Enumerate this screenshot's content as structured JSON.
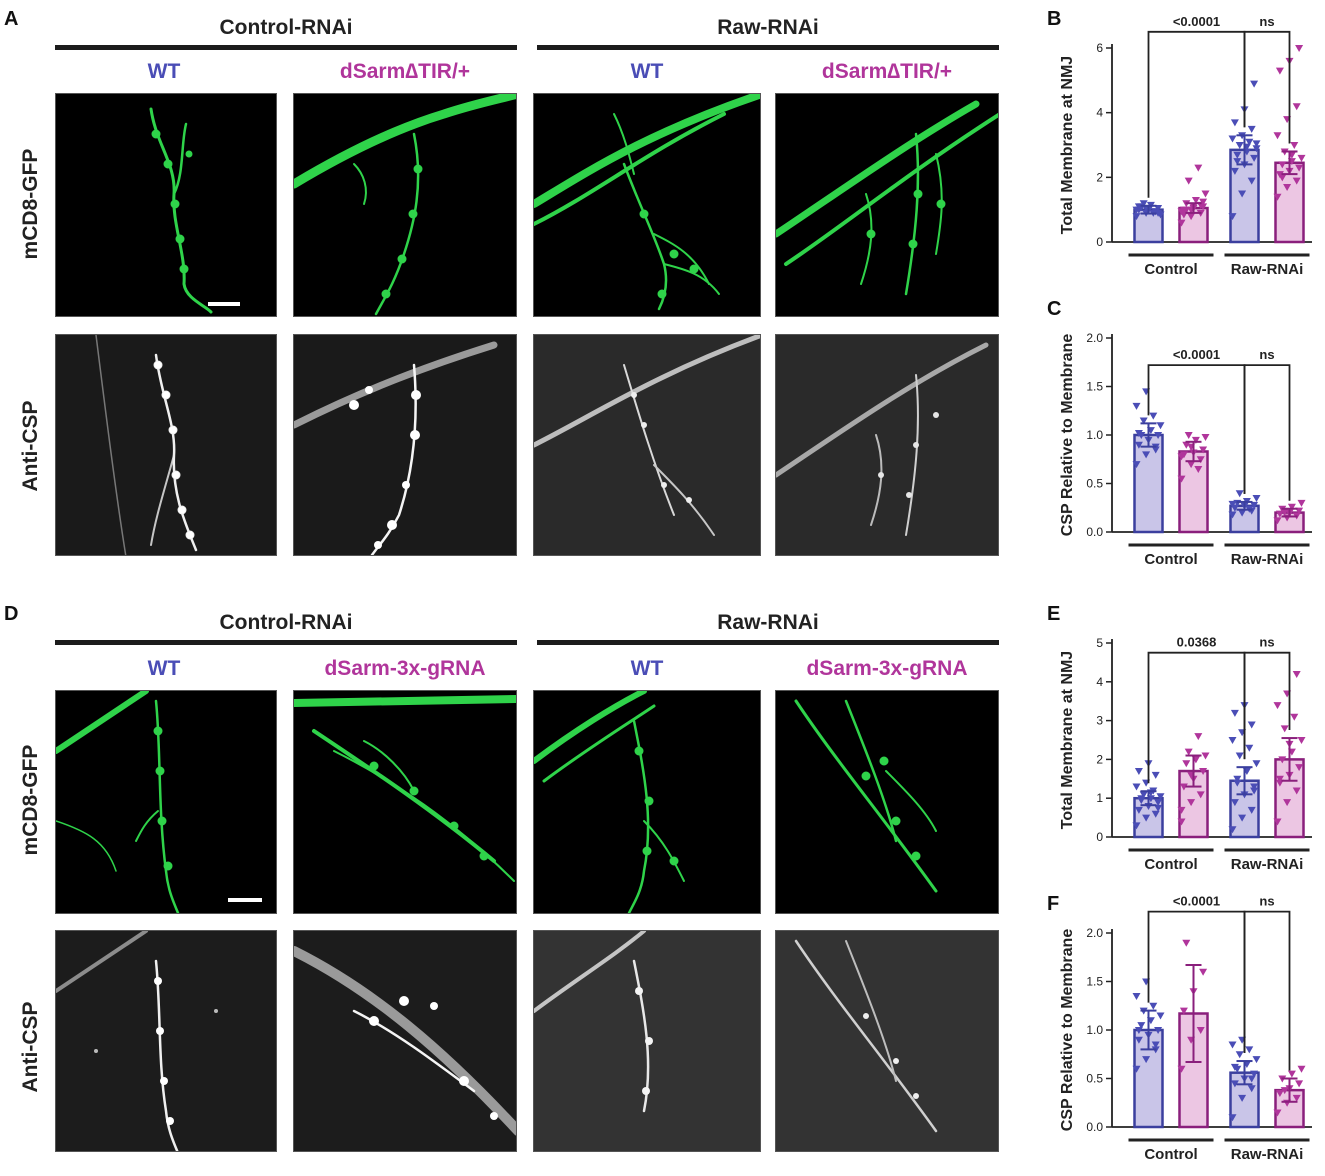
{
  "colors": {
    "wt": "#4a4db6",
    "sarm": "#b0359b",
    "wt_fill": "#c9c5e8",
    "sarm_fill": "#ecc6e3",
    "gfp": "#2fd34a",
    "wt_line": "#3b3f9e",
    "sarm_line": "#8a1f7c"
  },
  "letters": {
    "A": "A",
    "B": "B",
    "C": "C",
    "D": "D",
    "E": "E",
    "F": "F"
  },
  "top": {
    "group_left": "Control-RNAi",
    "group_right": "Raw-RNAi",
    "geno": [
      "WT",
      "dSarm∆TIR/+",
      "WT",
      "dSarm∆TIR/+"
    ],
    "row1": "mCD8-GFP",
    "row2": "Anti-CSP"
  },
  "bottom": {
    "group_left": "Control-RNAi",
    "group_right": "Raw-RNAi",
    "geno": [
      "WT",
      "dSarm-3x-gRNA",
      "WT",
      "dSarm-3x-gRNA"
    ],
    "row1": "mCD8-GFP",
    "row2": "Anti-CSP"
  },
  "chart_data": [
    {
      "panel": "B",
      "type": "bar",
      "ylabel": "Total Membrane at NMJ",
      "ylim": [
        0,
        6
      ],
      "yticks": [
        "0",
        "2",
        "4",
        "6"
      ],
      "groups": [
        "Control",
        "Raw-RNAi"
      ],
      "means": [
        1.0,
        1.05,
        2.85,
        2.45
      ],
      "errors": [
        0.12,
        0.15,
        0.45,
        0.35
      ],
      "sig": [
        {
          "label": "<0.0001",
          "from": 0,
          "to": 2,
          "y": 6.5
        },
        {
          "label": "ns",
          "from": 2,
          "to": 3,
          "y": 6.5
        }
      ],
      "points": [
        [
          0.8,
          0.9,
          0.95,
          1.0,
          1.0,
          1.05,
          1.1,
          1.15,
          0.85,
          1.2,
          0.9,
          1.0,
          1.05,
          0.95,
          1.1,
          1.0,
          0.9,
          1.08
        ],
        [
          0.6,
          0.8,
          0.9,
          1.0,
          1.05,
          1.1,
          1.2,
          1.3,
          1.5,
          1.9,
          2.3,
          0.95,
          1.0,
          1.15,
          0.85,
          1.1,
          1.25,
          1.0
        ],
        [
          0.8,
          1.5,
          1.9,
          2.2,
          2.4,
          2.6,
          2.7,
          2.8,
          2.9,
          3.0,
          3.1,
          3.2,
          3.3,
          3.5,
          3.7,
          4.1,
          4.9,
          2.5,
          2.95,
          3.05
        ],
        [
          1.4,
          1.7,
          1.9,
          2.1,
          2.2,
          2.3,
          2.4,
          2.5,
          2.6,
          2.8,
          3.0,
          3.3,
          3.8,
          4.2,
          5.3,
          5.6,
          6.0,
          2.0,
          2.7
        ]
      ]
    },
    {
      "panel": "C",
      "type": "bar",
      "ylabel": "CSP Relative to Membrane",
      "ylim": [
        0,
        2
      ],
      "yticks": [
        "0.0",
        "0.5",
        "1.0",
        "1.5",
        "2.0"
      ],
      "groups": [
        "Control",
        "Raw-RNAi"
      ],
      "means": [
        1.0,
        0.83,
        0.27,
        0.2
      ],
      "errors": [
        0.12,
        0.1,
        0.04,
        0.04
      ],
      "sig": [
        {
          "label": "<0.0001",
          "from": 0,
          "to": 2,
          "y": 1.72
        },
        {
          "label": "ns",
          "from": 2,
          "to": 3,
          "y": 1.72
        }
      ],
      "points": [
        [
          0.7,
          0.8,
          0.85,
          0.9,
          0.95,
          1.0,
          1.0,
          1.05,
          1.1,
          1.15,
          1.2,
          1.3,
          1.45,
          0.88,
          1.02
        ],
        [
          0.55,
          0.7,
          0.75,
          0.8,
          0.82,
          0.85,
          0.9,
          0.95,
          0.98,
          1.0,
          0.65,
          0.78,
          0.88
        ],
        [
          0.18,
          0.2,
          0.22,
          0.25,
          0.27,
          0.28,
          0.3,
          0.32,
          0.35,
          0.4,
          0.24,
          0.29
        ],
        [
          0.12,
          0.15,
          0.17,
          0.19,
          0.2,
          0.22,
          0.24,
          0.26,
          0.3,
          0.21
        ]
      ]
    },
    {
      "panel": "E",
      "type": "bar",
      "ylabel": "Total Membrane at NMJ",
      "ylim": [
        0,
        5
      ],
      "yticks": [
        "0",
        "1",
        "2",
        "3",
        "4",
        "5"
      ],
      "groups": [
        "Control",
        "Raw-RNAi"
      ],
      "means": [
        1.0,
        1.7,
        1.45,
        2.0
      ],
      "errors": [
        0.18,
        0.4,
        0.35,
        0.55
      ],
      "sig": [
        {
          "label": "0.0368",
          "from": 0,
          "to": 2,
          "y": 4.75
        },
        {
          "label": "ns",
          "from": 2,
          "to": 3,
          "y": 4.75
        }
      ],
      "points": [
        [
          0.3,
          0.5,
          0.6,
          0.7,
          0.8,
          0.9,
          0.95,
          1.0,
          1.05,
          1.1,
          1.2,
          1.3,
          1.4,
          1.6,
          1.7,
          1.9,
          0.75,
          1.0,
          1.15
        ],
        [
          0.4,
          0.9,
          1.1,
          1.3,
          1.5,
          1.7,
          1.9,
          2.0,
          2.1,
          2.2,
          2.6,
          0.7,
          1.6
        ],
        [
          0.2,
          0.5,
          0.7,
          0.9,
          1.1,
          1.3,
          1.5,
          1.7,
          1.9,
          2.1,
          2.3,
          2.5,
          2.7,
          2.9,
          3.2,
          3.4,
          1.2,
          1.4
        ],
        [
          0.4,
          0.9,
          1.2,
          1.4,
          1.6,
          1.8,
          2.0,
          2.2,
          2.5,
          2.8,
          3.1,
          3.4,
          3.7,
          4.2,
          1.5,
          2.4
        ]
      ]
    },
    {
      "panel": "F",
      "type": "bar",
      "ylabel": "CSP Relative to Membrane",
      "ylim": [
        0,
        2
      ],
      "yticks": [
        "0.0",
        "0.5",
        "1.0",
        "1.5",
        "2.0"
      ],
      "groups": [
        "Control",
        "Raw-RNAi"
      ],
      "means": [
        1.0,
        1.17,
        0.56,
        0.38
      ],
      "errors": [
        0.2,
        0.5,
        0.12,
        0.12
      ],
      "sig": [
        {
          "label": "<0.0001",
          "from": 0,
          "to": 2,
          "y": 2.22
        },
        {
          "label": "ns",
          "from": 2,
          "to": 3,
          "y": 2.22
        }
      ],
      "points": [
        [
          0.6,
          0.7,
          0.8,
          0.9,
          0.95,
          1.0,
          1.05,
          1.1,
          1.15,
          1.2,
          1.25,
          1.35,
          1.5,
          0.85,
          1.0
        ],
        [
          0.6,
          0.9,
          1.0,
          1.2,
          1.4,
          1.6,
          1.9
        ],
        [
          0.1,
          0.3,
          0.4,
          0.45,
          0.5,
          0.55,
          0.6,
          0.65,
          0.7,
          0.75,
          0.8,
          0.85,
          0.9,
          0.5,
          0.62
        ],
        [
          0.15,
          0.25,
          0.3,
          0.35,
          0.4,
          0.45,
          0.5,
          0.55,
          0.6,
          0.38
        ]
      ]
    }
  ]
}
